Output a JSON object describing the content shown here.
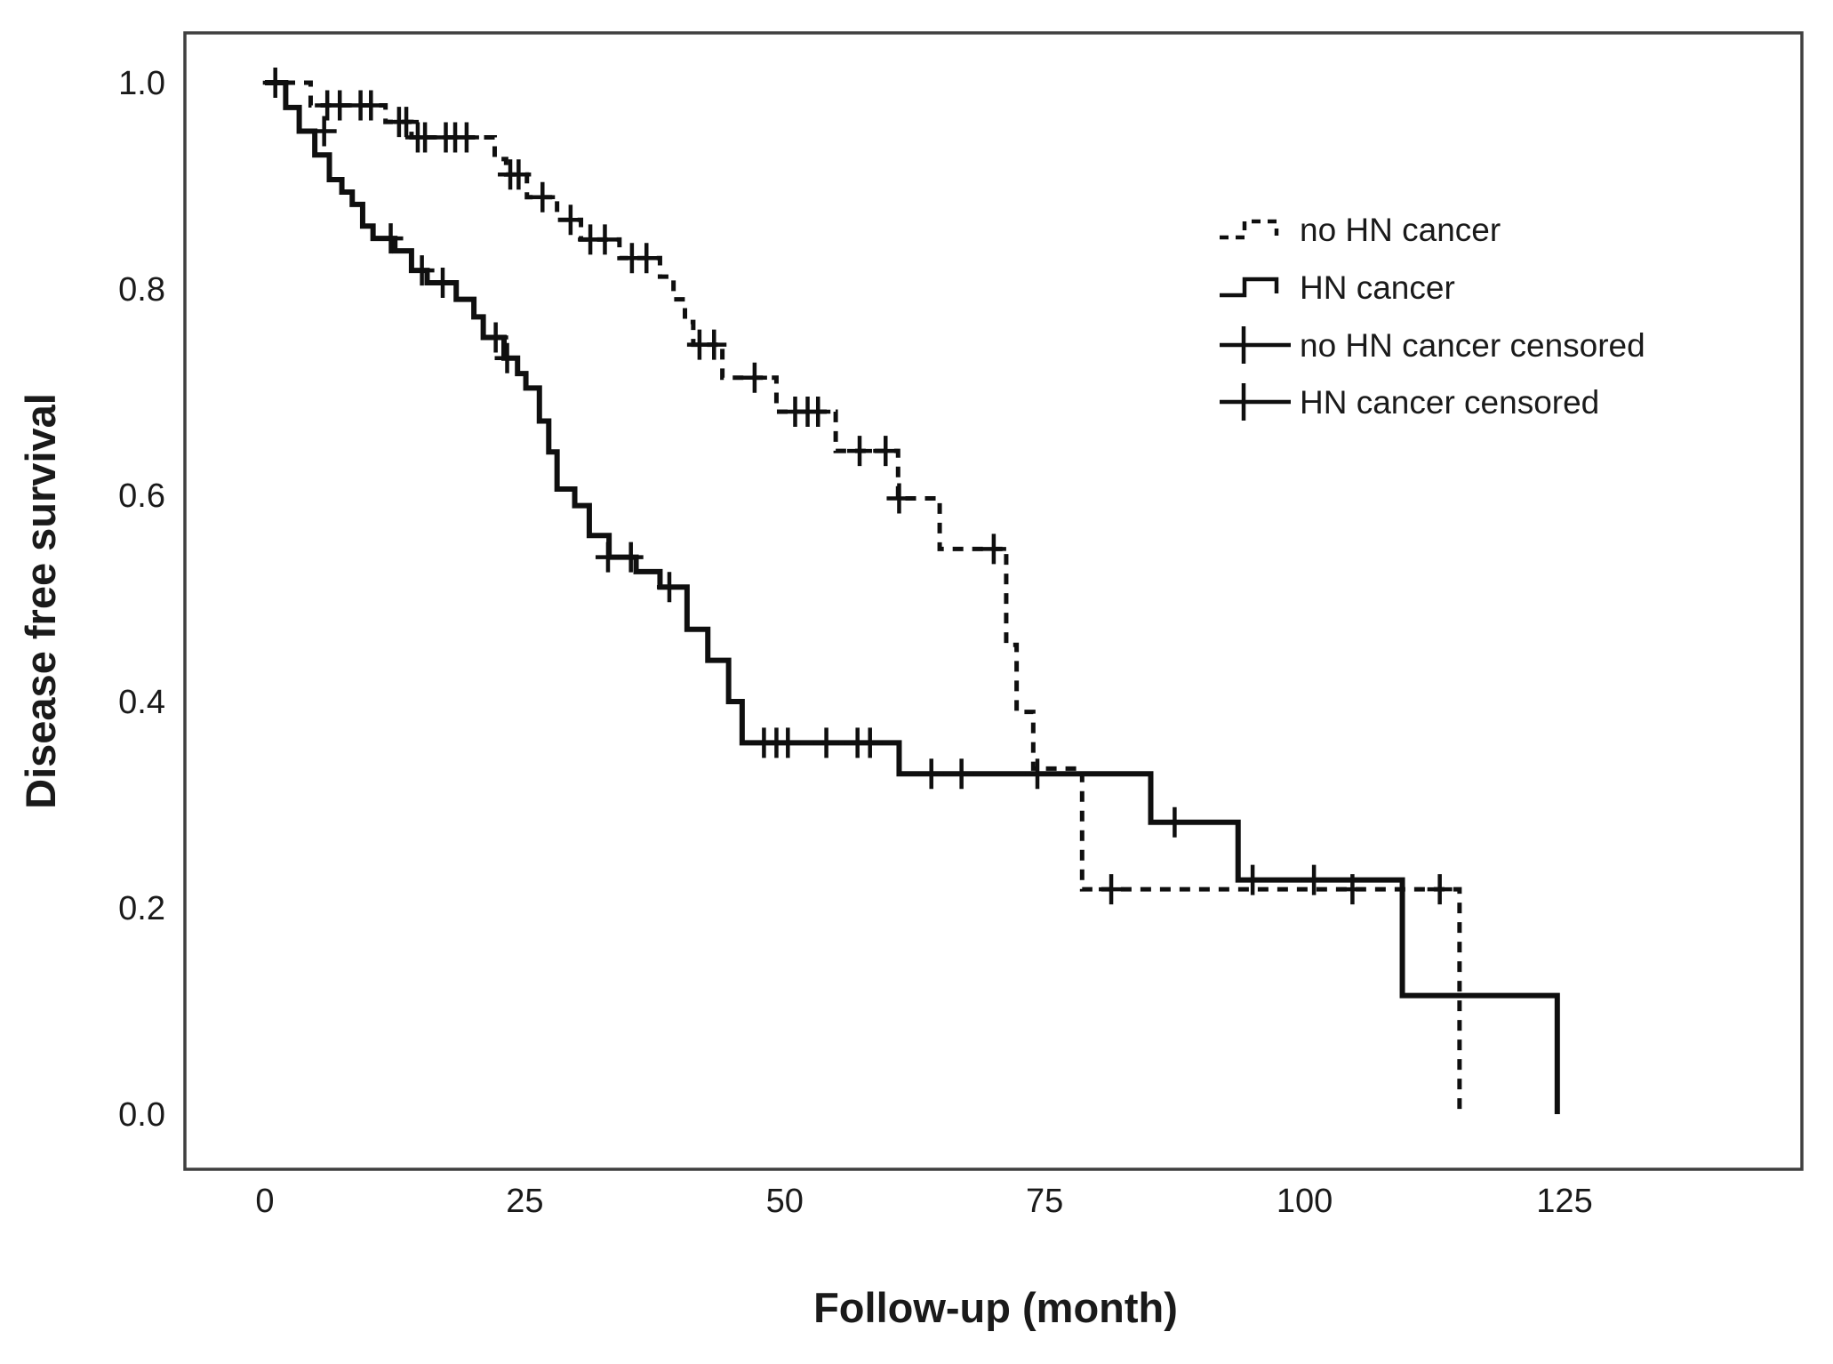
{
  "colors": {
    "background": "#ffffff",
    "curve": "#0f0f0f",
    "border": "#3f3f3f",
    "text": "#1a1a1a"
  },
  "chart_data": {
    "type": "line",
    "subtype": "kaplan-meier-step-survival",
    "title": "",
    "xlabel": "Follow-up (month)",
    "ylabel": "Disease free survival",
    "xticks": [
      0,
      25,
      50,
      75,
      100,
      125
    ],
    "yticks": [
      "0.0",
      "0.2",
      "0.4",
      "0.6",
      "0.8",
      "1.0"
    ],
    "xlim": [
      -7.7,
      147.8
    ],
    "ylim": [
      -0.09,
      1.05
    ],
    "grid": false,
    "legend_position": "inside-upper-right",
    "legend": [
      {
        "label": "no HN cancer",
        "symbol": "dashed-step"
      },
      {
        "label": "HN cancer",
        "symbol": "solid-step"
      },
      {
        "label": "no HN cancer censored",
        "symbol": "plus-on-line"
      },
      {
        "label": "HN cancer censored",
        "symbol": "plus-on-line"
      }
    ],
    "series": [
      {
        "name": "no HN cancer",
        "style": "dashed",
        "start": [
          0,
          1.0
        ],
        "steps": [
          [
            4.4,
            0.978
          ],
          [
            11.6,
            0.962
          ],
          [
            14.1,
            0.947
          ],
          [
            22.1,
            0.926
          ],
          [
            23.2,
            0.911
          ],
          [
            25.2,
            0.889
          ],
          [
            28.1,
            0.867
          ],
          [
            30.4,
            0.848
          ],
          [
            34.1,
            0.83
          ],
          [
            38.0,
            0.812
          ],
          [
            39.3,
            0.79
          ],
          [
            40.4,
            0.768
          ],
          [
            41.2,
            0.746
          ],
          [
            44.0,
            0.714
          ],
          [
            49.2,
            0.681
          ],
          [
            54.9,
            0.643
          ],
          [
            60.9,
            0.597
          ],
          [
            64.9,
            0.548
          ],
          [
            71.3,
            0.455
          ],
          [
            72.3,
            0.39
          ],
          [
            73.9,
            0.335
          ],
          [
            78.6,
            0.218
          ],
          [
            114.9,
            0.0
          ]
        ],
        "censored": [
          [
            6.0,
            0.978
          ],
          [
            7.2,
            0.978
          ],
          [
            9.2,
            0.978
          ],
          [
            10.2,
            0.978
          ],
          [
            12.9,
            0.962
          ],
          [
            13.6,
            0.962
          ],
          [
            14.7,
            0.947
          ],
          [
            15.4,
            0.947
          ],
          [
            17.4,
            0.947
          ],
          [
            18.3,
            0.947
          ],
          [
            19.4,
            0.947
          ],
          [
            23.6,
            0.911
          ],
          [
            24.4,
            0.911
          ],
          [
            26.7,
            0.889
          ],
          [
            29.4,
            0.867
          ],
          [
            31.3,
            0.848
          ],
          [
            32.7,
            0.848
          ],
          [
            35.3,
            0.83
          ],
          [
            36.7,
            0.83
          ],
          [
            41.8,
            0.746
          ],
          [
            43.2,
            0.746
          ],
          [
            47.1,
            0.714
          ],
          [
            51.0,
            0.681
          ],
          [
            52.2,
            0.681
          ],
          [
            53.2,
            0.681
          ],
          [
            57.2,
            0.643
          ],
          [
            59.7,
            0.643
          ],
          [
            61.0,
            0.597
          ],
          [
            70.1,
            0.548
          ],
          [
            81.4,
            0.218
          ],
          [
            104.6,
            0.218
          ],
          [
            113.0,
            0.218
          ]
        ]
      },
      {
        "name": "HN cancer",
        "style": "solid",
        "start": [
          0,
          1.0
        ],
        "steps": [
          [
            2.0,
            0.976
          ],
          [
            3.3,
            0.953
          ],
          [
            4.8,
            0.93
          ],
          [
            6.2,
            0.906
          ],
          [
            7.4,
            0.894
          ],
          [
            8.4,
            0.882
          ],
          [
            9.4,
            0.861
          ],
          [
            10.4,
            0.849
          ],
          [
            12.5,
            0.837
          ],
          [
            14.1,
            0.818
          ],
          [
            15.6,
            0.806
          ],
          [
            18.4,
            0.79
          ],
          [
            20.1,
            0.773
          ],
          [
            21.0,
            0.753
          ],
          [
            23.0,
            0.733
          ],
          [
            24.3,
            0.718
          ],
          [
            25.1,
            0.704
          ],
          [
            26.4,
            0.672
          ],
          [
            27.3,
            0.642
          ],
          [
            28.1,
            0.606
          ],
          [
            29.8,
            0.59
          ],
          [
            31.2,
            0.561
          ],
          [
            33.1,
            0.54
          ],
          [
            35.7,
            0.526
          ],
          [
            38.0,
            0.511
          ],
          [
            40.6,
            0.47
          ],
          [
            42.6,
            0.44
          ],
          [
            44.6,
            0.4
          ],
          [
            45.9,
            0.36
          ],
          [
            61.0,
            0.33
          ],
          [
            85.2,
            0.283
          ],
          [
            93.6,
            0.227
          ],
          [
            109.4,
            0.115
          ],
          [
            124.3,
            0.0
          ]
        ],
        "censored": [
          [
            1.0,
            1.0
          ],
          [
            5.7,
            0.953
          ],
          [
            12.1,
            0.849
          ],
          [
            15.1,
            0.818
          ],
          [
            17.1,
            0.806
          ],
          [
            22.2,
            0.753
          ],
          [
            23.3,
            0.733
          ],
          [
            33.0,
            0.54
          ],
          [
            35.2,
            0.54
          ],
          [
            38.9,
            0.511
          ],
          [
            48.0,
            0.36
          ],
          [
            49.2,
            0.36
          ],
          [
            50.3,
            0.36
          ],
          [
            54.0,
            0.36
          ],
          [
            57.0,
            0.36
          ],
          [
            58.2,
            0.36
          ],
          [
            64.1,
            0.33
          ],
          [
            67.0,
            0.33
          ],
          [
            74.3,
            0.33
          ],
          [
            87.5,
            0.283
          ],
          [
            95.0,
            0.227
          ],
          [
            100.9,
            0.227
          ]
        ]
      }
    ]
  }
}
